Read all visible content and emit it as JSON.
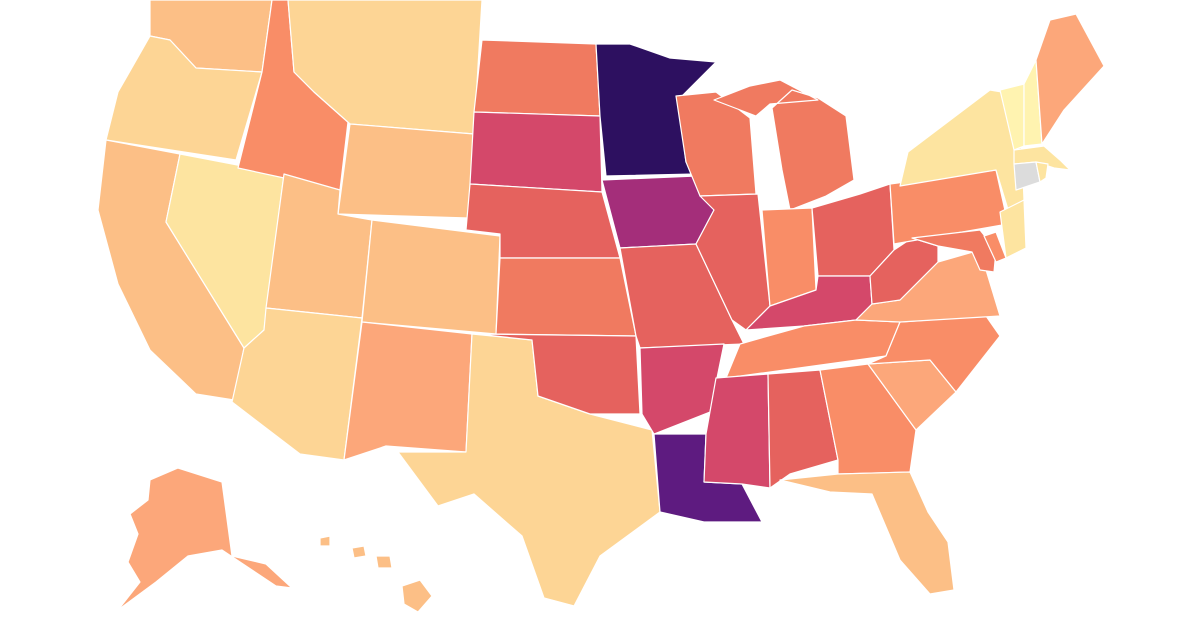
{
  "map": {
    "type": "choropleth",
    "region": "United States",
    "legend": "none",
    "palette": [
      "#fff3b0",
      "#fde4a0",
      "#fdd595",
      "#fcbf86",
      "#fca77a",
      "#f98d67",
      "#f07a60",
      "#e5625e",
      "#d4486a",
      "#a42e7a",
      "#5e1b80",
      "#2d1060"
    ],
    "no_data_color": "#dcdcdc",
    "states": [
      {
        "id": "WA",
        "level": 3
      },
      {
        "id": "OR",
        "level": 2
      },
      {
        "id": "CA",
        "level": 3
      },
      {
        "id": "NV",
        "level": 1
      },
      {
        "id": "ID",
        "level": 5
      },
      {
        "id": "MT",
        "level": 2
      },
      {
        "id": "WY",
        "level": 3
      },
      {
        "id": "UT",
        "level": 3
      },
      {
        "id": "AZ",
        "level": 2
      },
      {
        "id": "CO",
        "level": 3
      },
      {
        "id": "NM",
        "level": 4
      },
      {
        "id": "TX",
        "level": 2
      },
      {
        "id": "ND",
        "level": 6
      },
      {
        "id": "SD",
        "level": 8
      },
      {
        "id": "NE",
        "level": 7
      },
      {
        "id": "KS",
        "level": 6
      },
      {
        "id": "OK",
        "level": 7
      },
      {
        "id": "MN",
        "level": 11
      },
      {
        "id": "IA",
        "level": 9
      },
      {
        "id": "MO",
        "level": 7
      },
      {
        "id": "AR",
        "level": 8
      },
      {
        "id": "LA",
        "level": 10
      },
      {
        "id": "WI",
        "level": 6
      },
      {
        "id": "IL",
        "level": 7
      },
      {
        "id": "MI",
        "level": 6
      },
      {
        "id": "IN",
        "level": 5
      },
      {
        "id": "OH",
        "level": 7
      },
      {
        "id": "KY",
        "level": 8
      },
      {
        "id": "TN",
        "level": 5
      },
      {
        "id": "MS",
        "level": 8
      },
      {
        "id": "AL",
        "level": 7
      },
      {
        "id": "GA",
        "level": 5
      },
      {
        "id": "FL",
        "level": 3
      },
      {
        "id": "SC",
        "level": 4
      },
      {
        "id": "NC",
        "level": 5
      },
      {
        "id": "VA",
        "level": 4
      },
      {
        "id": "WV",
        "level": 7
      },
      {
        "id": "PA",
        "level": 5
      },
      {
        "id": "NY",
        "level": 1
      },
      {
        "id": "NJ",
        "level": 1
      },
      {
        "id": "MD",
        "level": 6
      },
      {
        "id": "DE",
        "level": 5
      },
      {
        "id": "VT",
        "level": 0
      },
      {
        "id": "NH",
        "level": 0
      },
      {
        "id": "ME",
        "level": 4
      },
      {
        "id": "MA",
        "level": 1
      },
      {
        "id": "CT",
        "level": null
      },
      {
        "id": "RI",
        "level": 1
      },
      {
        "id": "AK",
        "level": 4
      },
      {
        "id": "HI",
        "level": 3
      }
    ]
  }
}
